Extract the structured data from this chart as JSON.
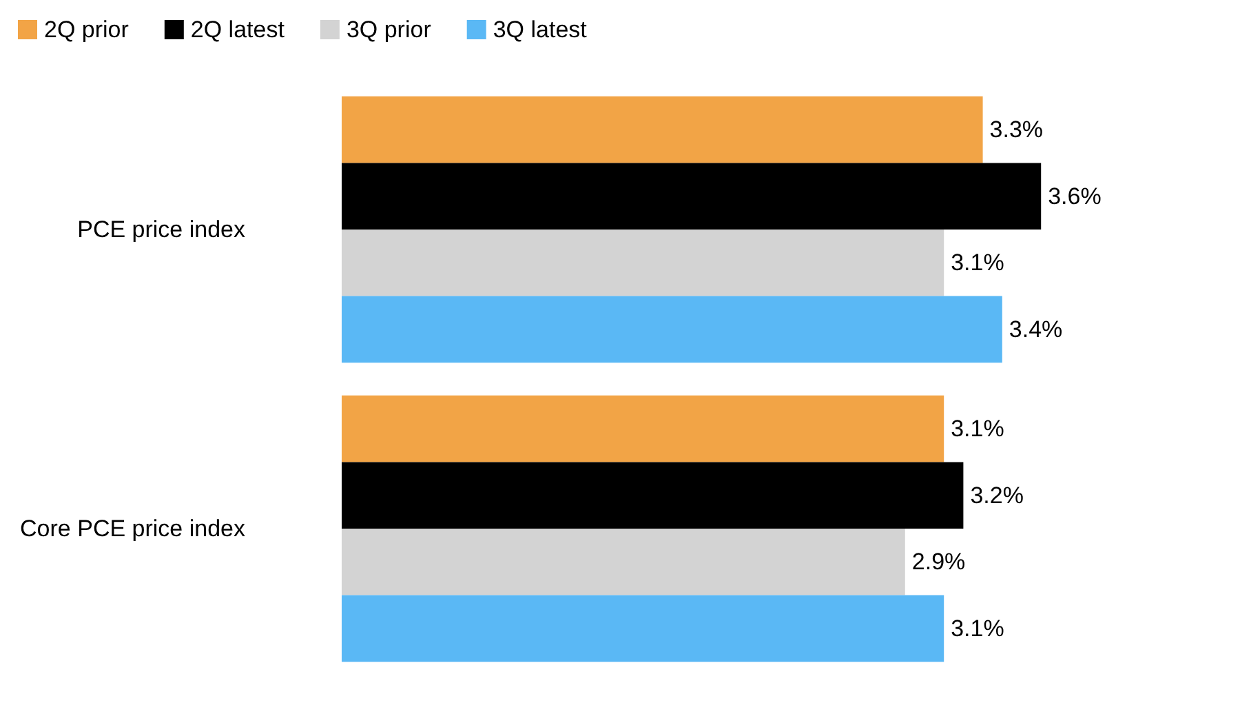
{
  "chart_data": {
    "type": "bar",
    "orientation": "horizontal",
    "categories": [
      "PCE price index",
      "Core PCE price index"
    ],
    "series": [
      {
        "name": "2Q prior",
        "color": "#f2a446",
        "values": [
          3.3,
          3.1
        ],
        "value_labels": [
          "3.3%",
          "3.1%"
        ]
      },
      {
        "name": "2Q latest",
        "color": "#000000",
        "values": [
          3.6,
          3.2
        ],
        "value_labels": [
          "3.6%",
          "3.2%"
        ]
      },
      {
        "name": "3Q prior",
        "color": "#d3d3d3",
        "values": [
          3.1,
          2.9
        ],
        "value_labels": [
          "3.1%",
          "2.9%"
        ]
      },
      {
        "name": "3Q latest",
        "color": "#5ab8f5",
        "values": [
          3.4,
          3.1
        ],
        "value_labels": [
          "3.4%",
          "3.1%"
        ]
      }
    ],
    "legend": "top left",
    "grid": false,
    "tick_labels": "y"
  }
}
